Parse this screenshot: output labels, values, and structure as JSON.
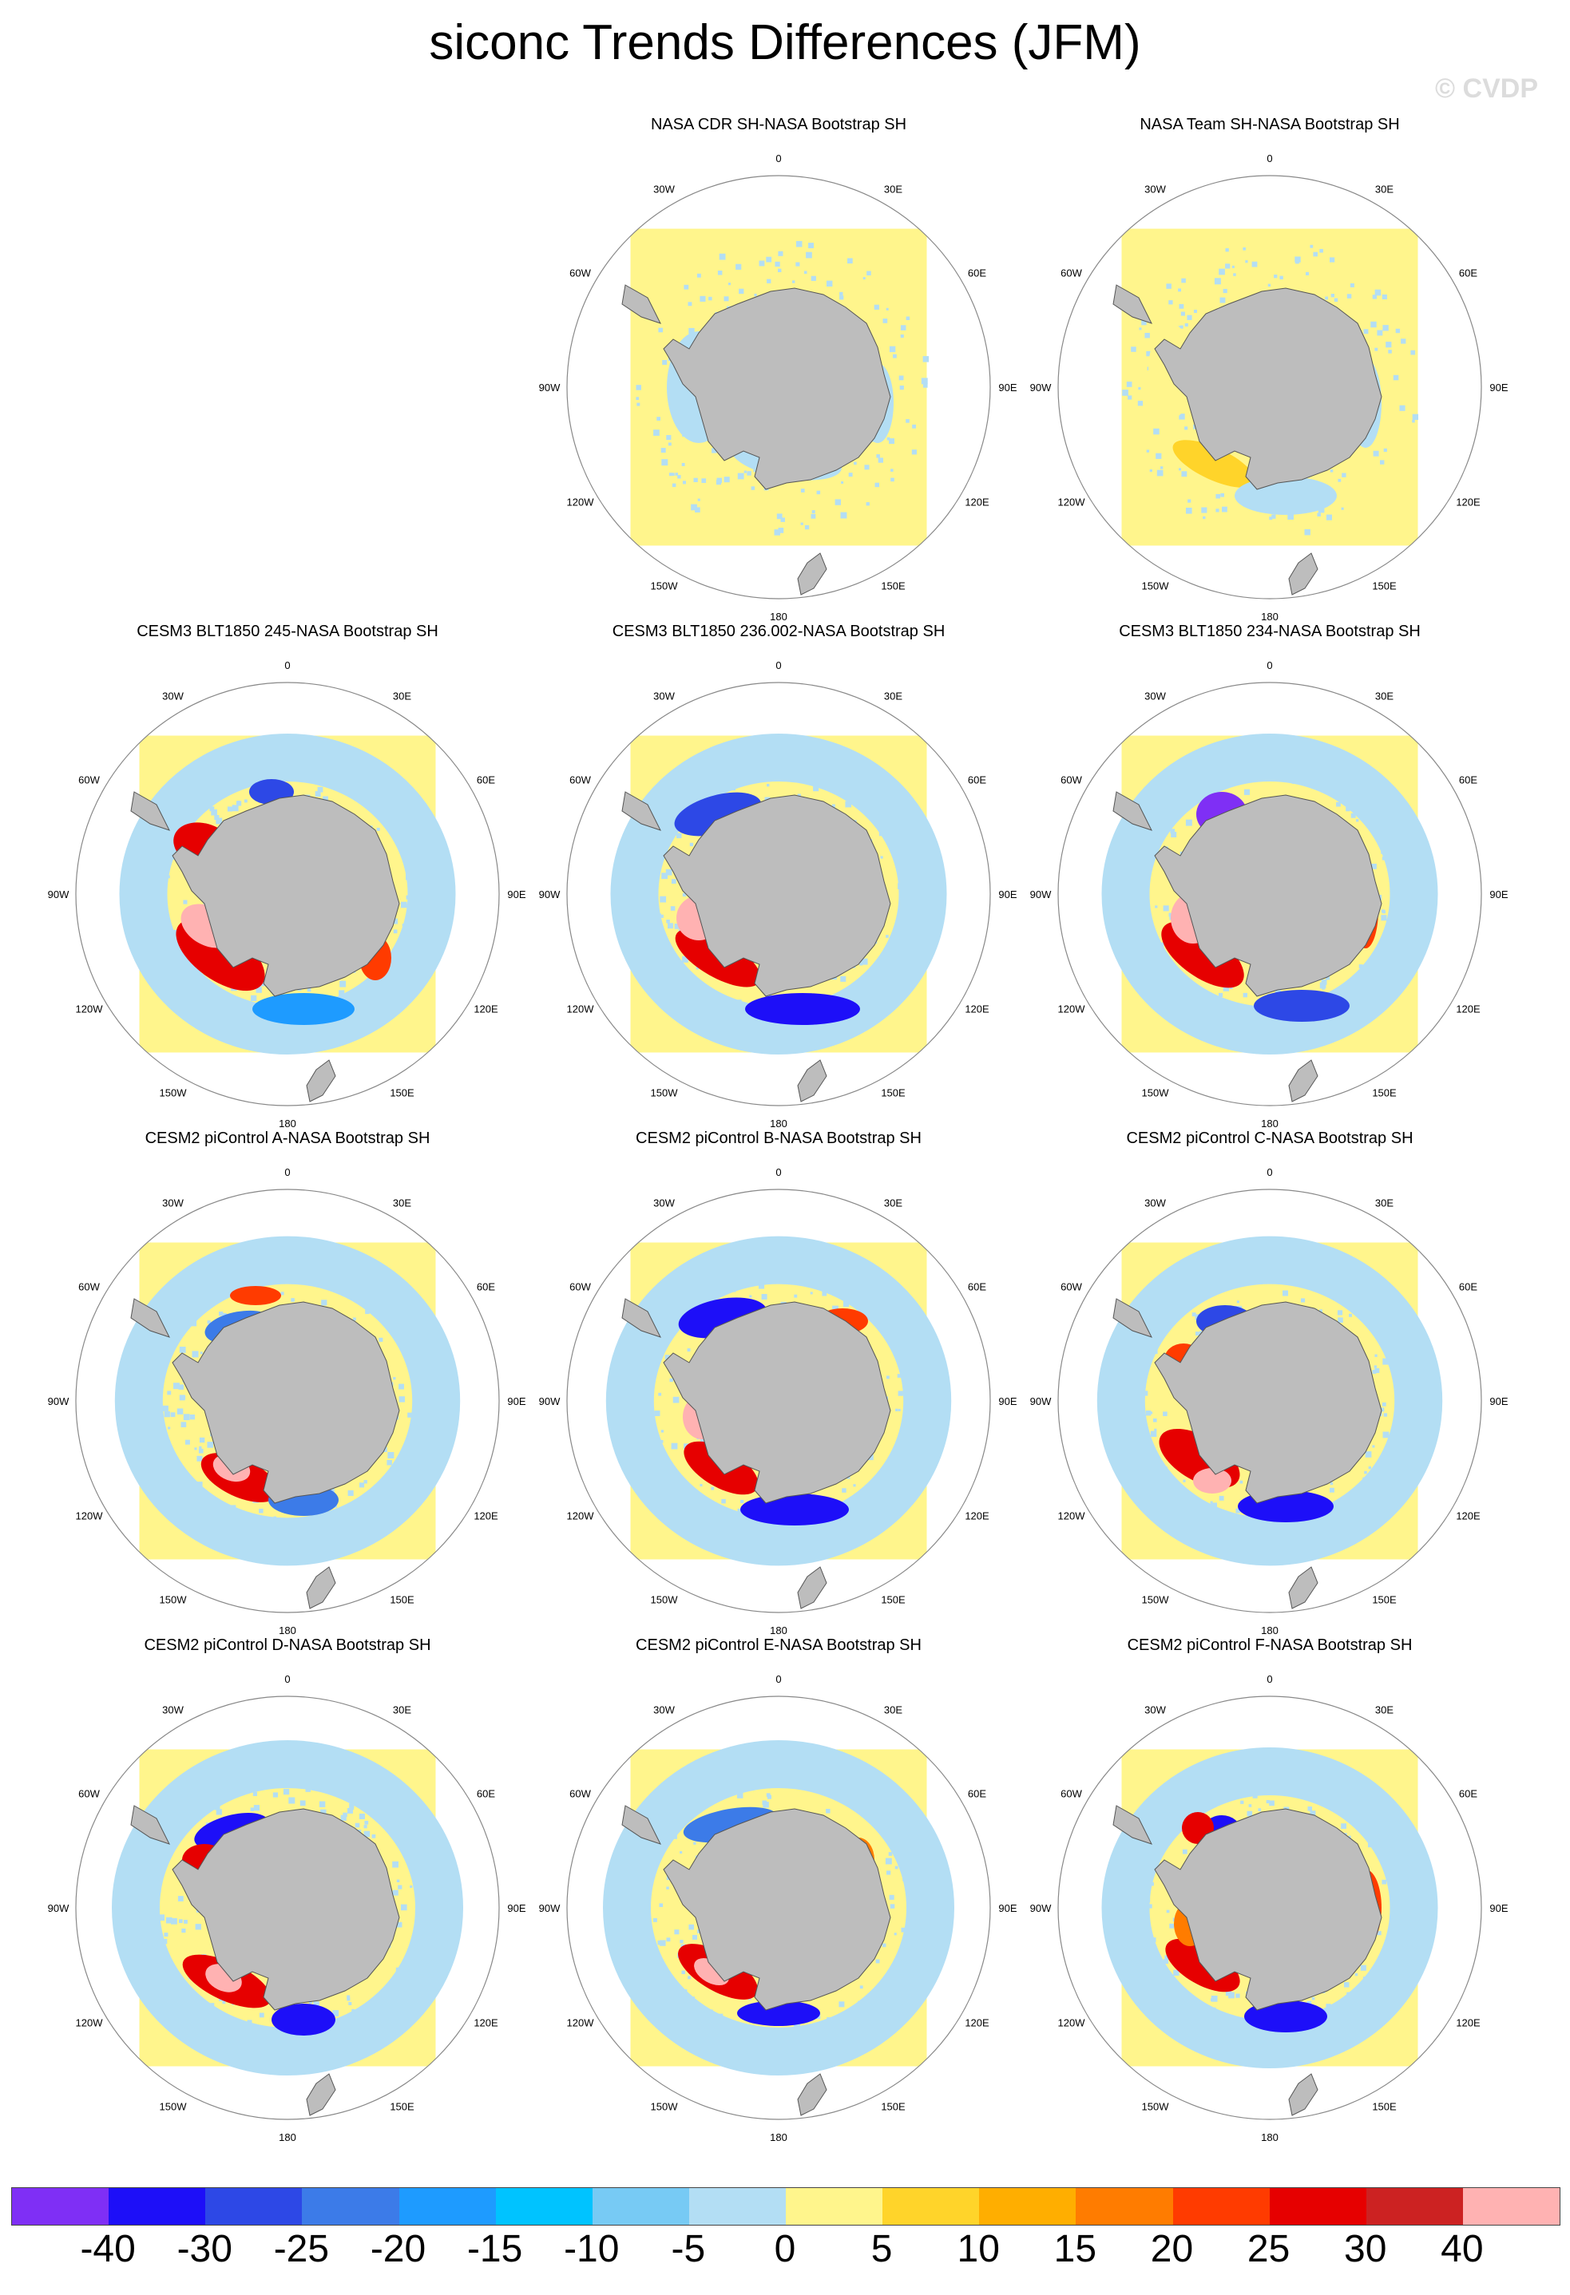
{
  "title": "siconc Trends Differences (JFM)",
  "watermark": "© CVDP",
  "lon_labels": [
    "0",
    "30E",
    "60E",
    "90E",
    "120E",
    "150E",
    "180",
    "150W",
    "120W",
    "90W",
    "60W",
    "30W"
  ],
  "panels": [
    {
      "title": "",
      "empty": true
    },
    {
      "title": "NASA CDR SH-NASA Bootstrap SH",
      "pattern": "obs1"
    },
    {
      "title": "NASA Team SH-NASA Bootstrap SH",
      "pattern": "obs2"
    },
    {
      "title": "CESM3 BLT1850 245-NASA Bootstrap SH",
      "pattern": "m1"
    },
    {
      "title": "CESM3 BLT1850 236.002-NASA Bootstrap SH",
      "pattern": "m2"
    },
    {
      "title": "CESM3 BLT1850 234-NASA Bootstrap SH",
      "pattern": "m3"
    },
    {
      "title": "CESM2 piControl A-NASA Bootstrap SH",
      "pattern": "m4"
    },
    {
      "title": "CESM2 piControl B-NASA Bootstrap SH",
      "pattern": "m5"
    },
    {
      "title": "CESM2 piControl C-NASA Bootstrap SH",
      "pattern": "m6"
    },
    {
      "title": "CESM2 piControl D-NASA Bootstrap SH",
      "pattern": "m7"
    },
    {
      "title": "CESM2 piControl E-NASA Bootstrap SH",
      "pattern": "m8"
    },
    {
      "title": "CESM2 piControl F-NASA Bootstrap SH",
      "pattern": "m9"
    }
  ],
  "colorbar": {
    "labels": [
      "-40",
      "-30",
      "-25",
      "-20",
      "-15",
      "-10",
      "-5",
      "0",
      "5",
      "10",
      "15",
      "20",
      "25",
      "30",
      "40"
    ],
    "colors": [
      "#7f2ff5",
      "#1d0ff8",
      "#2d48e6",
      "#3c7be8",
      "#1e9bff",
      "#00c3ff",
      "#77caf4",
      "#b3def4",
      "#fff58c",
      "#ffd42a",
      "#ffae00",
      "#ff7c00",
      "#ff3b00",
      "#e60000",
      "#cc2222",
      "#ffb2b2"
    ]
  },
  "colors": {
    "land": "#bdbdbd",
    "land_edge": "#555555",
    "ocean_neutral": "#fff58c",
    "slight_neg": "#b3def4"
  }
}
